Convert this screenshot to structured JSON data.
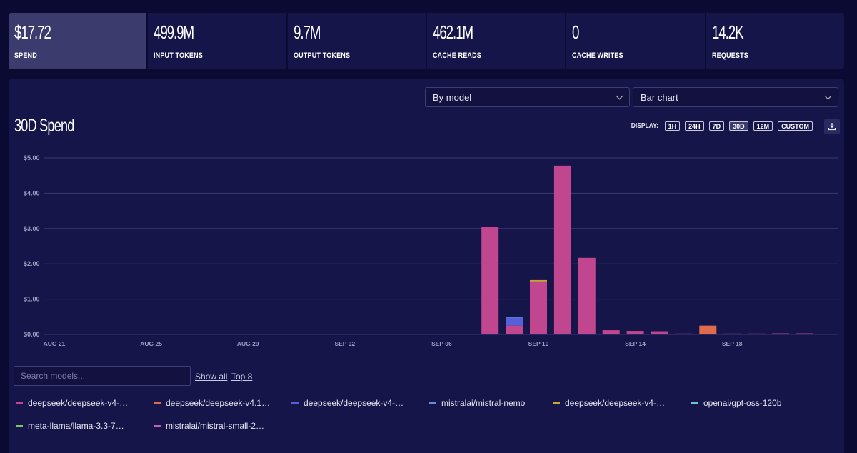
{
  "stats": [
    {
      "value": "$17.72",
      "label": "SPEND"
    },
    {
      "value": "499.9M",
      "label": "INPUT TOKENS"
    },
    {
      "value": "9.7M",
      "label": "OUTPUT TOKENS"
    },
    {
      "value": "462.1M",
      "label": "CACHE READS"
    },
    {
      "value": "0",
      "label": "CACHE WRITES"
    },
    {
      "value": "14.2K",
      "label": "REQUESTS"
    }
  ],
  "controls": {
    "group_by": "By model",
    "chart_type": "Bar chart",
    "display_label": "DISPLAY:",
    "ranges": [
      "1H",
      "24H",
      "7D",
      "30D",
      "12M",
      "CUSTOM"
    ],
    "active_range": "30D",
    "download_icon": "download-icon"
  },
  "search": {
    "placeholder": "Search models..."
  },
  "links": {
    "show_all": "Show all",
    "top8": "Top 8"
  },
  "chart_data": {
    "type": "bar",
    "stacked": true,
    "title": "30D Spend",
    "ylim": [
      0,
      5
    ],
    "yticks": [
      "$0.00",
      "$1.00",
      "$2.00",
      "$3.00",
      "$4.00",
      "$5.00"
    ],
    "grid": true,
    "categories": [
      "AUG 21",
      "AUG 22",
      "AUG 23",
      "AUG 24",
      "AUG 25",
      "AUG 26",
      "AUG 27",
      "AUG 28",
      "AUG 29",
      "AUG 30",
      "AUG 31",
      "SEP 01",
      "SEP 02",
      "SEP 03",
      "SEP 04",
      "SEP 05",
      "SEP 06",
      "SEP 07",
      "SEP 08",
      "SEP 09",
      "SEP 10",
      "SEP 11",
      "SEP 12",
      "SEP 13",
      "SEP 14",
      "SEP 15",
      "SEP 16",
      "SEP 17",
      "SEP 18",
      "SEP 19",
      "SEP 20",
      "SEP 21"
    ],
    "xtick_labels": [
      "AUG 21",
      "AUG 25",
      "AUG 29",
      "SEP 02",
      "SEP 06",
      "SEP 10",
      "SEP 14",
      "SEP 18"
    ],
    "series": [
      {
        "name": "deepseek/deepseek-v4-…",
        "color": "#c0468f",
        "values": [
          0,
          0,
          0,
          0,
          0,
          0,
          0,
          0,
          0,
          0,
          0,
          0,
          0,
          0,
          0,
          0,
          0,
          0,
          3.05,
          0.25,
          1.5,
          4.78,
          2.17,
          0.12,
          0.1,
          0.09,
          0.01,
          0,
          0.02,
          0.02,
          0.03,
          0.03
        ]
      },
      {
        "name": "deepseek/deepseek-v4.1…",
        "color": "#e06b4c",
        "values": [
          0,
          0,
          0,
          0,
          0,
          0,
          0,
          0,
          0,
          0,
          0,
          0,
          0,
          0,
          0,
          0,
          0,
          0,
          0,
          0,
          0,
          0,
          0,
          0,
          0,
          0,
          0,
          0.25,
          0,
          0,
          0,
          0
        ]
      },
      {
        "name": "deepseek/deepseek-v4-…",
        "color": "#5660d8",
        "values": [
          0,
          0,
          0,
          0,
          0,
          0,
          0,
          0,
          0,
          0,
          0,
          0,
          0,
          0,
          0,
          0,
          0,
          0,
          0,
          0.22,
          0,
          0,
          0,
          0,
          0,
          0,
          0,
          0,
          0,
          0,
          0,
          0
        ]
      },
      {
        "name": "mistralai/mistral-nemo",
        "color": "#5b8fdf",
        "values": [
          0,
          0,
          0,
          0,
          0,
          0,
          0,
          0,
          0,
          0,
          0,
          0,
          0,
          0,
          0,
          0,
          0,
          0,
          0,
          0.03,
          0,
          0,
          0,
          0,
          0,
          0,
          0,
          0,
          0,
          0,
          0,
          0
        ]
      },
      {
        "name": "deepseek/deepseek-v4-…",
        "color": "#c9a23a",
        "values": [
          0,
          0,
          0,
          0,
          0,
          0,
          0,
          0,
          0,
          0,
          0,
          0,
          0,
          0,
          0,
          0,
          0,
          0,
          0,
          0,
          0.04,
          0,
          0,
          0,
          0,
          0,
          0,
          0,
          0,
          0,
          0,
          0
        ]
      },
      {
        "name": "openai/gpt-oss-120b",
        "color": "#6cc6c4",
        "values": [
          0,
          0,
          0,
          0,
          0,
          0,
          0,
          0,
          0,
          0,
          0,
          0,
          0,
          0,
          0,
          0,
          0,
          0,
          0,
          0,
          0,
          0,
          0,
          0,
          0,
          0,
          0,
          0,
          0,
          0,
          0,
          0
        ]
      },
      {
        "name": "meta-llama/llama-3.3-7…",
        "color": "#7bc46a",
        "values": [
          0,
          0,
          0,
          0,
          0,
          0,
          0,
          0,
          0,
          0,
          0,
          0,
          0,
          0,
          0,
          0,
          0,
          0,
          0,
          0,
          0,
          0,
          0,
          0,
          0,
          0,
          0,
          0,
          0,
          0,
          0,
          0
        ]
      },
      {
        "name": "mistralai/mistral-small-2…",
        "color": "#c45fb6",
        "values": [
          0,
          0,
          0,
          0,
          0,
          0,
          0,
          0,
          0,
          0,
          0,
          0,
          0,
          0,
          0,
          0,
          0,
          0,
          0,
          0,
          0,
          0,
          0,
          0,
          0,
          0,
          0,
          0,
          0,
          0,
          0,
          0
        ]
      }
    ]
  }
}
